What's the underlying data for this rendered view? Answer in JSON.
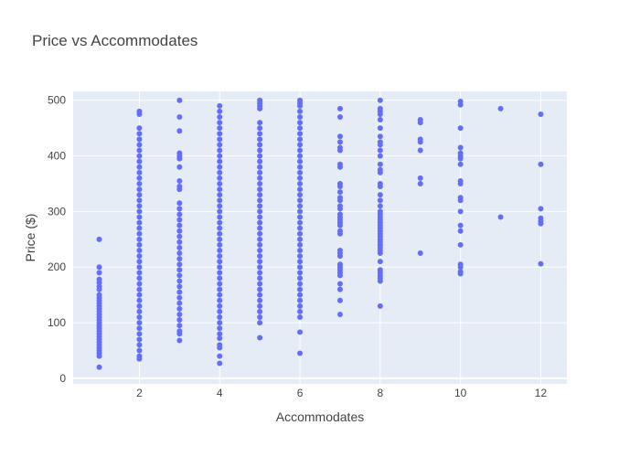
{
  "chart_data": {
    "type": "scatter",
    "title": "Price vs Accommodates",
    "xlabel": "Accommodates",
    "ylabel": "Price ($)",
    "xlim": [
      0.35,
      12.65
    ],
    "ylim": [
      -10,
      516
    ],
    "x_ticks": [
      2,
      4,
      6,
      8,
      10,
      12
    ],
    "y_ticks": [
      0,
      100,
      200,
      300,
      400,
      500
    ],
    "grid": true,
    "legend": "none",
    "colors": {
      "marker": "#636efa",
      "plot_bg": "#e5ecf6",
      "grid": "#ffffff",
      "text": "#444444"
    },
    "points": [
      [
        1,
        250
      ],
      [
        1,
        200
      ],
      [
        1,
        190
      ],
      [
        1,
        178
      ],
      [
        1,
        172
      ],
      [
        1,
        165
      ],
      [
        1,
        160
      ],
      [
        1,
        150
      ],
      [
        1,
        145
      ],
      [
        1,
        140
      ],
      [
        1,
        135
      ],
      [
        1,
        130
      ],
      [
        1,
        125
      ],
      [
        1,
        120
      ],
      [
        1,
        115
      ],
      [
        1,
        110
      ],
      [
        1,
        105
      ],
      [
        1,
        100
      ],
      [
        1,
        95
      ],
      [
        1,
        90
      ],
      [
        1,
        85
      ],
      [
        1,
        80
      ],
      [
        1,
        75
      ],
      [
        1,
        70
      ],
      [
        1,
        65
      ],
      [
        1,
        60
      ],
      [
        1,
        55
      ],
      [
        1,
        50
      ],
      [
        1,
        45
      ],
      [
        1,
        40
      ],
      [
        1,
        20
      ],
      [
        2,
        480
      ],
      [
        2,
        475
      ],
      [
        2,
        450
      ],
      [
        2,
        440
      ],
      [
        2,
        430
      ],
      [
        2,
        420
      ],
      [
        2,
        410
      ],
      [
        2,
        400
      ],
      [
        2,
        390
      ],
      [
        2,
        380
      ],
      [
        2,
        370
      ],
      [
        2,
        360
      ],
      [
        2,
        350
      ],
      [
        2,
        340
      ],
      [
        2,
        330
      ],
      [
        2,
        320
      ],
      [
        2,
        310
      ],
      [
        2,
        300
      ],
      [
        2,
        290
      ],
      [
        2,
        280
      ],
      [
        2,
        270
      ],
      [
        2,
        260
      ],
      [
        2,
        250
      ],
      [
        2,
        240
      ],
      [
        2,
        230
      ],
      [
        2,
        220
      ],
      [
        2,
        210
      ],
      [
        2,
        200
      ],
      [
        2,
        190
      ],
      [
        2,
        180
      ],
      [
        2,
        170
      ],
      [
        2,
        160
      ],
      [
        2,
        150
      ],
      [
        2,
        140
      ],
      [
        2,
        130
      ],
      [
        2,
        120
      ],
      [
        2,
        110
      ],
      [
        2,
        100
      ],
      [
        2,
        90
      ],
      [
        2,
        80
      ],
      [
        2,
        70
      ],
      [
        2,
        60
      ],
      [
        2,
        50
      ],
      [
        2,
        40
      ],
      [
        2,
        35
      ],
      [
        3,
        500
      ],
      [
        3,
        470
      ],
      [
        3,
        445
      ],
      [
        3,
        405
      ],
      [
        3,
        400
      ],
      [
        3,
        395
      ],
      [
        3,
        380
      ],
      [
        3,
        355
      ],
      [
        3,
        345
      ],
      [
        3,
        340
      ],
      [
        3,
        315
      ],
      [
        3,
        305
      ],
      [
        3,
        295
      ],
      [
        3,
        285
      ],
      [
        3,
        275
      ],
      [
        3,
        265
      ],
      [
        3,
        255
      ],
      [
        3,
        245
      ],
      [
        3,
        235
      ],
      [
        3,
        225
      ],
      [
        3,
        215
      ],
      [
        3,
        205
      ],
      [
        3,
        195
      ],
      [
        3,
        185
      ],
      [
        3,
        175
      ],
      [
        3,
        165
      ],
      [
        3,
        155
      ],
      [
        3,
        145
      ],
      [
        3,
        135
      ],
      [
        3,
        125
      ],
      [
        3,
        115
      ],
      [
        3,
        105
      ],
      [
        3,
        95
      ],
      [
        3,
        85
      ],
      [
        3,
        80
      ],
      [
        3,
        68
      ],
      [
        4,
        490
      ],
      [
        4,
        480
      ],
      [
        4,
        470
      ],
      [
        4,
        460
      ],
      [
        4,
        450
      ],
      [
        4,
        440
      ],
      [
        4,
        430
      ],
      [
        4,
        420
      ],
      [
        4,
        410
      ],
      [
        4,
        400
      ],
      [
        4,
        390
      ],
      [
        4,
        380
      ],
      [
        4,
        370
      ],
      [
        4,
        360
      ],
      [
        4,
        350
      ],
      [
        4,
        340
      ],
      [
        4,
        330
      ],
      [
        4,
        320
      ],
      [
        4,
        310
      ],
      [
        4,
        300
      ],
      [
        4,
        290
      ],
      [
        4,
        280
      ],
      [
        4,
        270
      ],
      [
        4,
        260
      ],
      [
        4,
        250
      ],
      [
        4,
        240
      ],
      [
        4,
        230
      ],
      [
        4,
        220
      ],
      [
        4,
        210
      ],
      [
        4,
        200
      ],
      [
        4,
        190
      ],
      [
        4,
        180
      ],
      [
        4,
        170
      ],
      [
        4,
        160
      ],
      [
        4,
        150
      ],
      [
        4,
        140
      ],
      [
        4,
        130
      ],
      [
        4,
        120
      ],
      [
        4,
        110
      ],
      [
        4,
        100
      ],
      [
        4,
        90
      ],
      [
        4,
        80
      ],
      [
        4,
        72
      ],
      [
        4,
        60
      ],
      [
        4,
        55
      ],
      [
        4,
        40
      ],
      [
        4,
        27
      ],
      [
        5,
        500
      ],
      [
        5,
        495
      ],
      [
        5,
        490
      ],
      [
        5,
        485
      ],
      [
        5,
        460
      ],
      [
        5,
        450
      ],
      [
        5,
        440
      ],
      [
        5,
        430
      ],
      [
        5,
        420
      ],
      [
        5,
        410
      ],
      [
        5,
        400
      ],
      [
        5,
        390
      ],
      [
        5,
        380
      ],
      [
        5,
        370
      ],
      [
        5,
        360
      ],
      [
        5,
        350
      ],
      [
        5,
        340
      ],
      [
        5,
        330
      ],
      [
        5,
        320
      ],
      [
        5,
        310
      ],
      [
        5,
        300
      ],
      [
        5,
        290
      ],
      [
        5,
        280
      ],
      [
        5,
        270
      ],
      [
        5,
        260
      ],
      [
        5,
        250
      ],
      [
        5,
        240
      ],
      [
        5,
        230
      ],
      [
        5,
        220
      ],
      [
        5,
        210
      ],
      [
        5,
        200
      ],
      [
        5,
        190
      ],
      [
        5,
        180
      ],
      [
        5,
        170
      ],
      [
        5,
        160
      ],
      [
        5,
        150
      ],
      [
        5,
        140
      ],
      [
        5,
        130
      ],
      [
        5,
        120
      ],
      [
        5,
        110
      ],
      [
        5,
        100
      ],
      [
        5,
        73
      ],
      [
        6,
        500
      ],
      [
        6,
        495
      ],
      [
        6,
        490
      ],
      [
        6,
        480
      ],
      [
        6,
        470
      ],
      [
        6,
        460
      ],
      [
        6,
        450
      ],
      [
        6,
        440
      ],
      [
        6,
        430
      ],
      [
        6,
        420
      ],
      [
        6,
        410
      ],
      [
        6,
        400
      ],
      [
        6,
        390
      ],
      [
        6,
        380
      ],
      [
        6,
        370
      ],
      [
        6,
        360
      ],
      [
        6,
        350
      ],
      [
        6,
        340
      ],
      [
        6,
        330
      ],
      [
        6,
        320
      ],
      [
        6,
        310
      ],
      [
        6,
        300
      ],
      [
        6,
        290
      ],
      [
        6,
        280
      ],
      [
        6,
        270
      ],
      [
        6,
        260
      ],
      [
        6,
        250
      ],
      [
        6,
        240
      ],
      [
        6,
        230
      ],
      [
        6,
        220
      ],
      [
        6,
        210
      ],
      [
        6,
        200
      ],
      [
        6,
        190
      ],
      [
        6,
        180
      ],
      [
        6,
        170
      ],
      [
        6,
        160
      ],
      [
        6,
        150
      ],
      [
        6,
        140
      ],
      [
        6,
        130
      ],
      [
        6,
        120
      ],
      [
        6,
        110
      ],
      [
        6,
        83
      ],
      [
        6,
        45
      ],
      [
        7,
        485
      ],
      [
        7,
        470
      ],
      [
        7,
        435
      ],
      [
        7,
        425
      ],
      [
        7,
        415
      ],
      [
        7,
        410
      ],
      [
        7,
        385
      ],
      [
        7,
        380
      ],
      [
        7,
        350
      ],
      [
        7,
        345
      ],
      [
        7,
        335
      ],
      [
        7,
        325
      ],
      [
        7,
        320
      ],
      [
        7,
        310
      ],
      [
        7,
        305
      ],
      [
        7,
        295
      ],
      [
        7,
        290
      ],
      [
        7,
        285
      ],
      [
        7,
        280
      ],
      [
        7,
        275
      ],
      [
        7,
        265
      ],
      [
        7,
        260
      ],
      [
        7,
        230
      ],
      [
        7,
        225
      ],
      [
        7,
        220
      ],
      [
        7,
        205
      ],
      [
        7,
        200
      ],
      [
        7,
        195
      ],
      [
        7,
        190
      ],
      [
        7,
        185
      ],
      [
        7,
        170
      ],
      [
        7,
        160
      ],
      [
        7,
        140
      ],
      [
        7,
        115
      ],
      [
        8,
        500
      ],
      [
        8,
        485
      ],
      [
        8,
        480
      ],
      [
        8,
        475
      ],
      [
        8,
        465
      ],
      [
        8,
        450
      ],
      [
        8,
        435
      ],
      [
        8,
        425
      ],
      [
        8,
        420
      ],
      [
        8,
        410
      ],
      [
        8,
        400
      ],
      [
        8,
        385
      ],
      [
        8,
        375
      ],
      [
        8,
        370
      ],
      [
        8,
        350
      ],
      [
        8,
        345
      ],
      [
        8,
        330
      ],
      [
        8,
        320
      ],
      [
        8,
        310
      ],
      [
        8,
        300
      ],
      [
        8,
        295
      ],
      [
        8,
        290
      ],
      [
        8,
        285
      ],
      [
        8,
        280
      ],
      [
        8,
        275
      ],
      [
        8,
        270
      ],
      [
        8,
        265
      ],
      [
        8,
        260
      ],
      [
        8,
        255
      ],
      [
        8,
        250
      ],
      [
        8,
        245
      ],
      [
        8,
        240
      ],
      [
        8,
        235
      ],
      [
        8,
        230
      ],
      [
        8,
        225
      ],
      [
        8,
        210
      ],
      [
        8,
        195
      ],
      [
        8,
        190
      ],
      [
        8,
        185
      ],
      [
        8,
        180
      ],
      [
        8,
        175
      ],
      [
        8,
        130
      ],
      [
        9,
        465
      ],
      [
        9,
        460
      ],
      [
        9,
        430
      ],
      [
        9,
        425
      ],
      [
        9,
        410
      ],
      [
        9,
        360
      ],
      [
        9,
        350
      ],
      [
        9,
        225
      ],
      [
        10,
        498
      ],
      [
        10,
        492
      ],
      [
        10,
        450
      ],
      [
        10,
        415
      ],
      [
        10,
        405
      ],
      [
        10,
        400
      ],
      [
        10,
        395
      ],
      [
        10,
        385
      ],
      [
        10,
        355
      ],
      [
        10,
        350
      ],
      [
        10,
        325
      ],
      [
        10,
        320
      ],
      [
        10,
        300
      ],
      [
        10,
        275
      ],
      [
        10,
        265
      ],
      [
        10,
        240
      ],
      [
        10,
        205
      ],
      [
        10,
        200
      ],
      [
        10,
        192
      ],
      [
        10,
        188
      ],
      [
        11,
        485
      ],
      [
        11,
        290
      ],
      [
        12,
        475
      ],
      [
        12,
        385
      ],
      [
        12,
        305
      ],
      [
        12,
        288
      ],
      [
        12,
        283
      ],
      [
        12,
        278
      ],
      [
        12,
        206
      ]
    ]
  }
}
